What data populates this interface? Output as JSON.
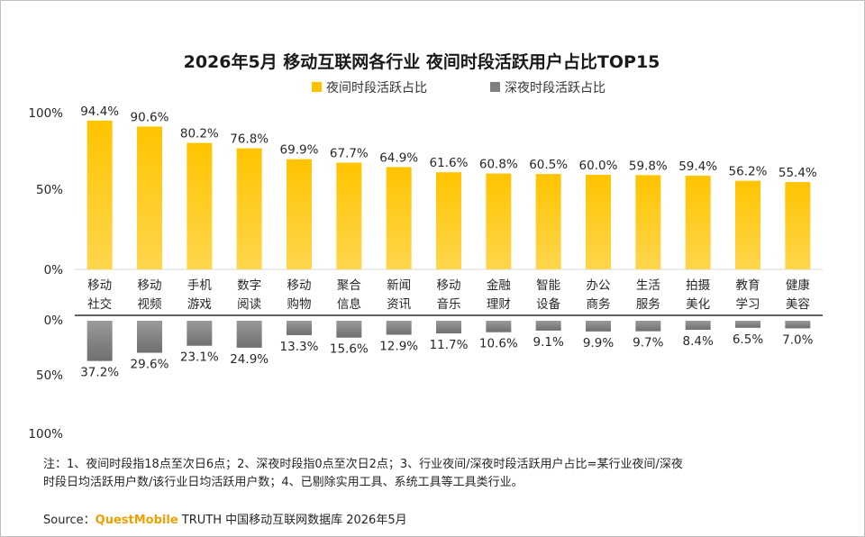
{
  "chart_data": {
    "type": "bar",
    "title": "2026年5月 移动互联网各行业 夜间时段活跃用户占比TOP15",
    "categories": [
      [
        "移动",
        "社交"
      ],
      [
        "移动",
        "视频"
      ],
      [
        "手机",
        "游戏"
      ],
      [
        "数字",
        "阅读"
      ],
      [
        "移动",
        "购物"
      ],
      [
        "聚合",
        "信息"
      ],
      [
        "新闻",
        "资讯"
      ],
      [
        "移动",
        "音乐"
      ],
      [
        "金融",
        "理财"
      ],
      [
        "智能",
        "设备"
      ],
      [
        "办公",
        "商务"
      ],
      [
        "生活",
        "服务"
      ],
      [
        "拍摄",
        "美化"
      ],
      [
        "教育",
        "学习"
      ],
      [
        "健康",
        "美容"
      ]
    ],
    "series": [
      {
        "name": "夜间时段活跃占比",
        "color": "#ffc000",
        "values": [
          94.4,
          90.6,
          80.2,
          76.8,
          69.9,
          67.7,
          64.9,
          61.6,
          60.8,
          60.5,
          60.0,
          59.8,
          59.4,
          56.2,
          55.4
        ],
        "labels": [
          "94.4%",
          "90.6%",
          "80.2%",
          "76.8%",
          "69.9%",
          "67.7%",
          "64.9%",
          "61.6%",
          "60.8%",
          "60.5%",
          "60.0%",
          "59.8%",
          "59.4%",
          "56.2%",
          "55.4%"
        ]
      },
      {
        "name": "深夜时段活跃占比",
        "color": "#7f7f7f",
        "values": [
          37.2,
          29.6,
          23.1,
          24.9,
          13.3,
          15.6,
          12.9,
          11.7,
          10.6,
          9.1,
          9.9,
          9.7,
          8.4,
          6.5,
          7.0
        ],
        "labels": [
          "37.2%",
          "29.6%",
          "23.1%",
          "24.9%",
          "13.3%",
          "15.6%",
          "12.9%",
          "11.7%",
          "10.6%",
          "9.1%",
          "9.9%",
          "9.7%",
          "8.4%",
          "6.5%",
          "7.0%"
        ]
      }
    ],
    "top_axis": {
      "ylim": [
        0,
        100
      ],
      "ticks": [
        "100%",
        "50%",
        "0%"
      ]
    },
    "bottom_axis": {
      "ylim": [
        0,
        100
      ],
      "ticks": [
        "0%",
        "50%",
        "100%"
      ],
      "direction": "down"
    },
    "legend_position": "top-center",
    "grid": false
  },
  "footnote": {
    "line1": "注：1、夜间时段指18点至次日6点；2、深夜时段指0点至次日2点；3、行业夜间/深夜时段活跃用户占比=某行业夜间/深夜",
    "line2": "时段日均活跃用户数/该行业日均活跃用户数；4、已剔除实用工具、系统工具等工具类行业。"
  },
  "source": {
    "prefix": "Source：",
    "brand": "QuestMobile",
    "rest": " TRUTH 中国移动互联网数据库 2026年5月"
  }
}
